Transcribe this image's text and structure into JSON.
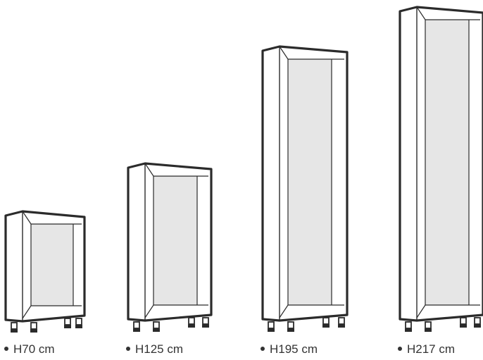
{
  "cabinets": [
    {
      "label": "H70 cm"
    },
    {
      "label": "H125 cm"
    },
    {
      "label": "H195 cm"
    },
    {
      "label": "H217 cm"
    }
  ],
  "colors": {
    "outline": "#2b2b2b",
    "interior": "#e6e6e6",
    "frame": "#ffffff",
    "label": "#333333"
  }
}
